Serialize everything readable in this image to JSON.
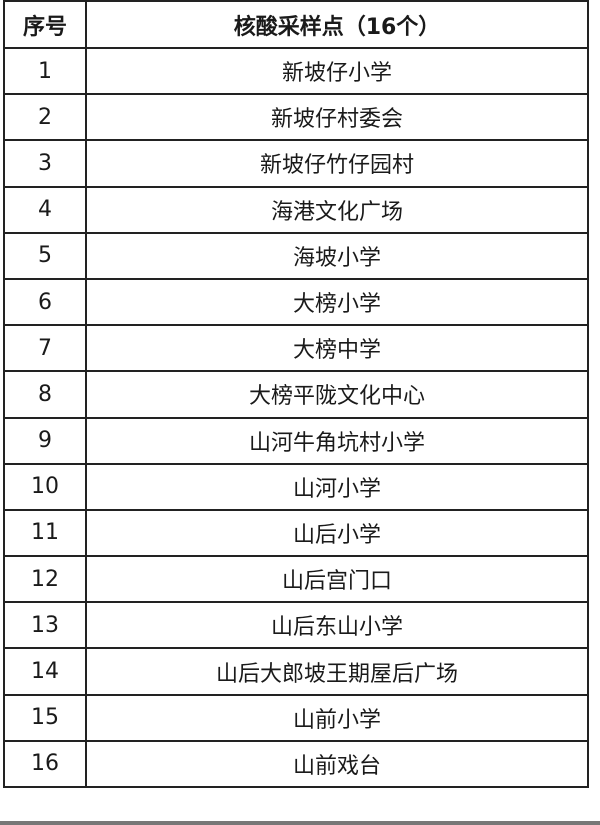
{
  "table": {
    "headers": [
      "序号",
      "核酸采样点（16个）"
    ],
    "rows": [
      [
        "1",
        "新坡仔小学"
      ],
      [
        "2",
        "新坡仔村委会"
      ],
      [
        "3",
        "新坡仔竹仔园村"
      ],
      [
        "4",
        "海港文化广场"
      ],
      [
        "5",
        "海坡小学"
      ],
      [
        "6",
        "大榜小学"
      ],
      [
        "7",
        "大榜中学"
      ],
      [
        "8",
        "大榜平陇文化中心"
      ],
      [
        "9",
        "山河牛角坑村小学"
      ],
      [
        "10",
        "山河小学"
      ],
      [
        "11",
        "山后小学"
      ],
      [
        "12",
        "山后宫门口"
      ],
      [
        "13",
        "山后东山小学"
      ],
      [
        "14",
        "山后大郎坡王期屋后广场"
      ],
      [
        "15",
        "山前小学"
      ],
      [
        "16",
        "山前戏台"
      ]
    ]
  }
}
